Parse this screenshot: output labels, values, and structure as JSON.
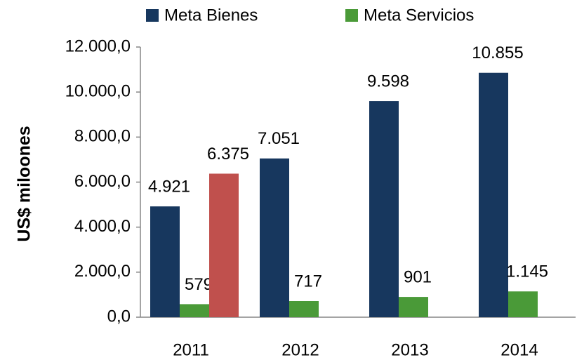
{
  "chart_data": {
    "type": "bar",
    "y_label": "US$ miloones",
    "categories": [
      "2011",
      "2012",
      "2013",
      "2014"
    ],
    "series": [
      {
        "name": "Meta Bienes",
        "color": "#17375e",
        "values": [
          4921,
          7051,
          9598,
          10855
        ],
        "value_labels": [
          "4.921",
          "7.051",
          "9.598",
          "10.855"
        ]
      },
      {
        "name": "Meta Servicios",
        "color": "#4a9a38",
        "values": [
          579,
          717,
          901,
          1145
        ],
        "value_labels": [
          "579",
          "717",
          "901",
          "1.145"
        ]
      },
      {
        "color": "#c0504d",
        "values": [
          6375,
          null,
          null,
          null
        ],
        "value_labels": [
          "6.375",
          null,
          null,
          null
        ]
      }
    ],
    "ylim": [
      0,
      12000
    ],
    "yticks": [
      {
        "value": 0,
        "label": "0,0"
      },
      {
        "value": 2000,
        "label": "2.000,0"
      },
      {
        "value": 4000,
        "label": "4.000,0"
      },
      {
        "value": 6000,
        "label": "6.000,0"
      },
      {
        "value": 8000,
        "label": "8.000,0"
      },
      {
        "value": 10000,
        "label": "10.000,0"
      },
      {
        "value": 12000,
        "label": "12.000,0"
      }
    ],
    "legend": "top"
  }
}
